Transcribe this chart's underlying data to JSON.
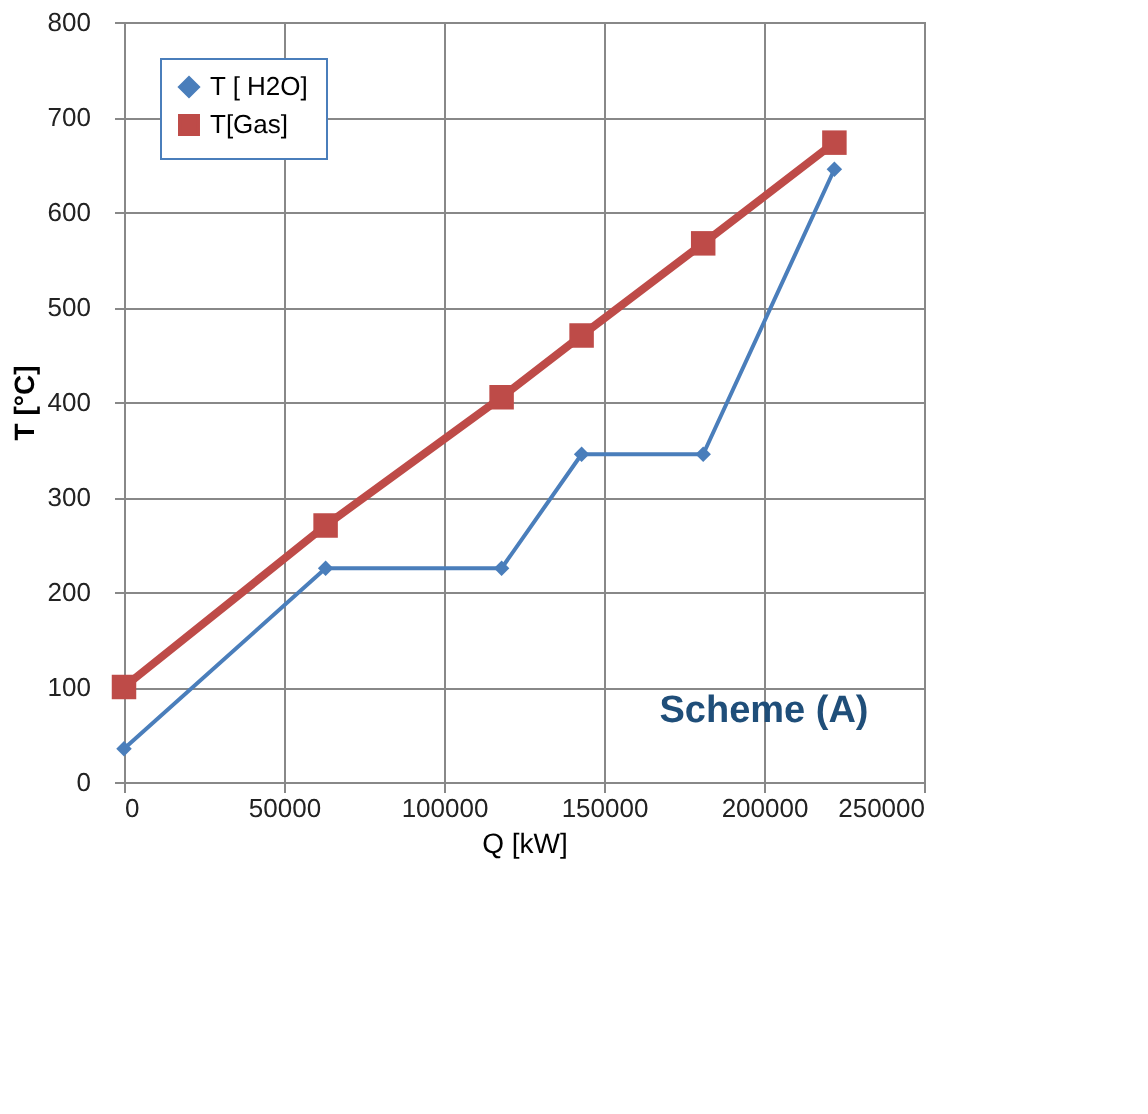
{
  "chart_data": {
    "type": "line",
    "xlabel": "Q [kW]",
    "ylabel": "T [°C]",
    "x": [
      0,
      63000,
      118000,
      143000,
      181000,
      222000
    ],
    "series": [
      {
        "name": "T [ H2O]",
        "color": "#4a7ebb",
        "marker": "diamond",
        "values": [
          35,
          225,
          225,
          345,
          345,
          645
        ]
      },
      {
        "name": "T[Gas]",
        "color": "#be4b48",
        "marker": "square",
        "values": [
          100,
          270,
          405,
          470,
          567,
          673
        ]
      }
    ],
    "xlim": [
      0,
      250000
    ],
    "xticks": [
      0,
      50000,
      100000,
      150000,
      200000,
      250000
    ],
    "ylim": [
      0,
      800
    ],
    "yticks": [
      0,
      100,
      200,
      300,
      400,
      500,
      600,
      700,
      800
    ],
    "grid": true,
    "legend": "top left",
    "line_style": "solid",
    "annotations": [
      "Scheme (A)"
    ]
  }
}
